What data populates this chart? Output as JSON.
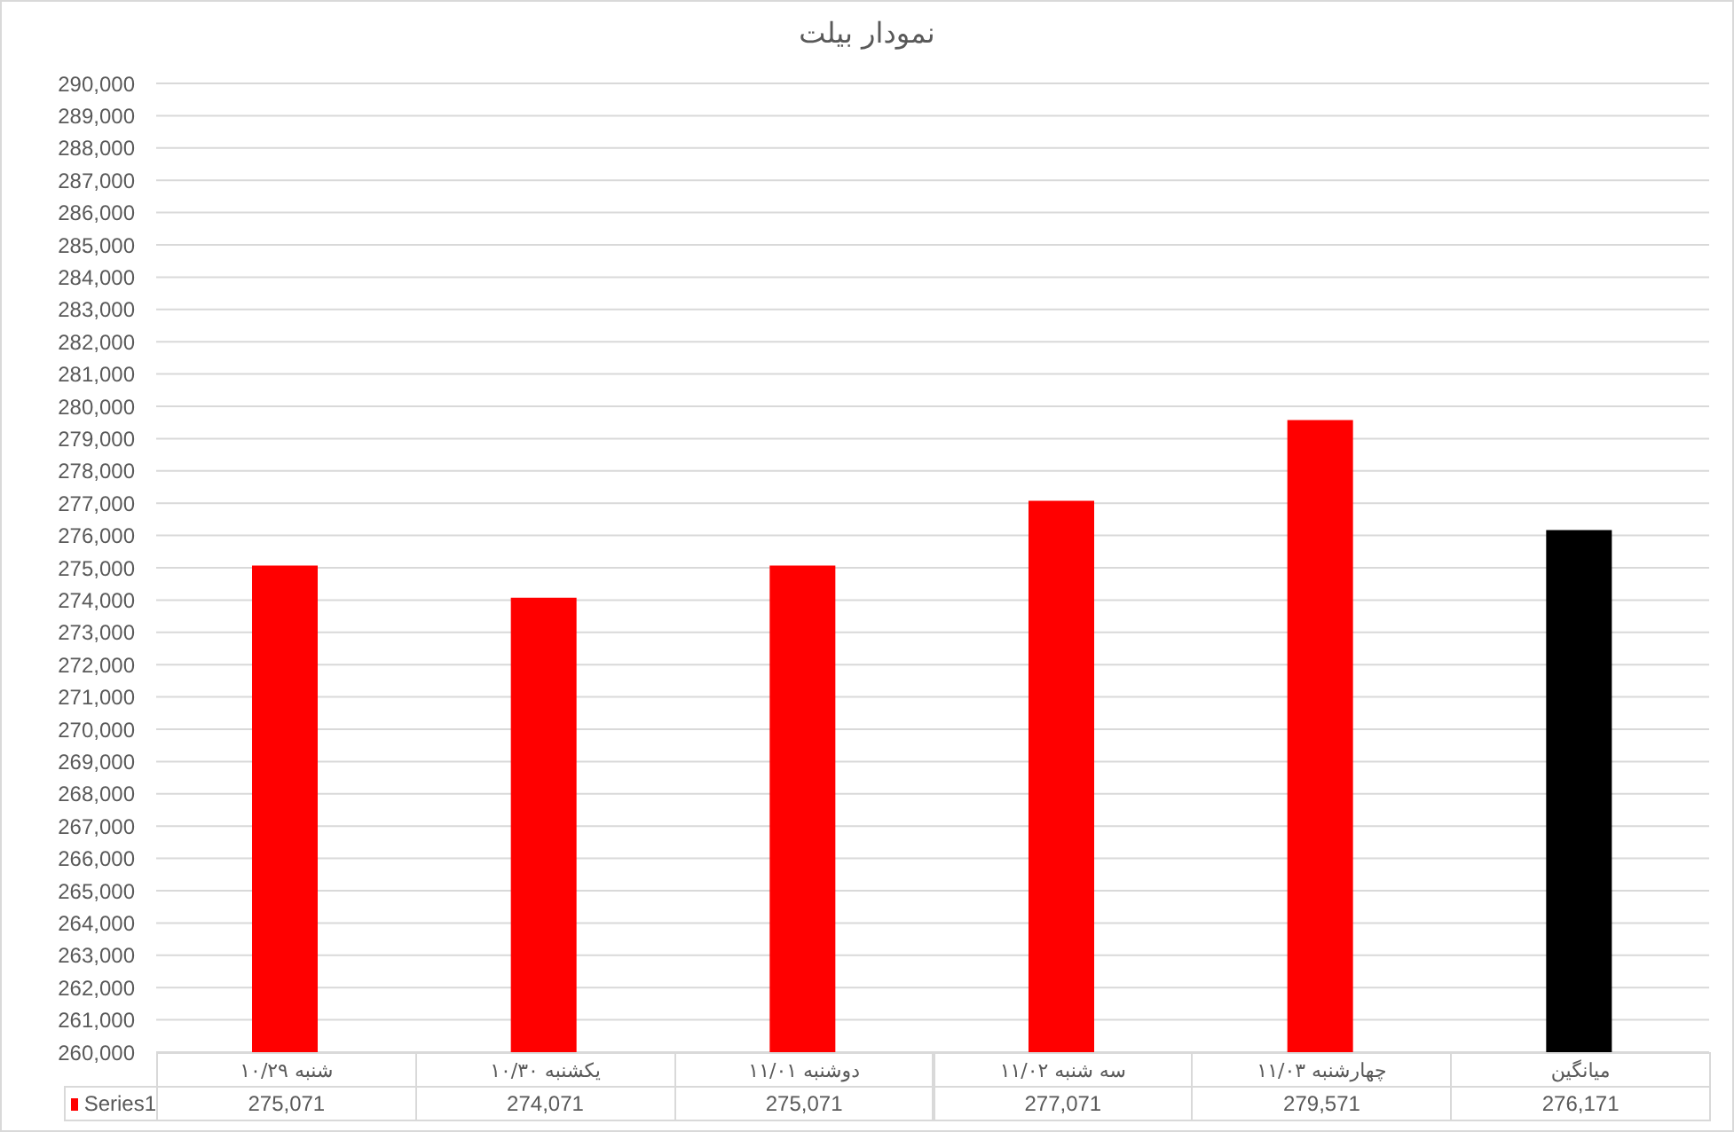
{
  "chart_data": {
    "type": "bar",
    "title": "نمودار بیلت",
    "categories": [
      "شنبه ۱۰/۲۹",
      "یکشنبه ۱۰/۳۰",
      "دوشنبه ۱۱/۰۱",
      "سه شنبه ۱۱/۰۲",
      "چهارشنبه ۱۱/۰۳",
      "میانگین"
    ],
    "series": [
      {
        "name": "Series1",
        "color": "#ff0000",
        "colors": [
          "#ff0000",
          "#ff0000",
          "#ff0000",
          "#ff0000",
          "#ff0000",
          "#000000"
        ],
        "values": [
          275071,
          274071,
          275071,
          277071,
          279571,
          276171
        ],
        "value_labels": [
          "275,071",
          "274,071",
          "275,071",
          "277,071",
          "279,571",
          "276,171"
        ]
      }
    ],
    "ylim": [
      260000,
      290000
    ],
    "yticks": [
      {
        "value": 260000,
        "label": "260,000"
      },
      {
        "value": 261000,
        "label": "261,000"
      },
      {
        "value": 262000,
        "label": "262,000"
      },
      {
        "value": 263000,
        "label": "263,000"
      },
      {
        "value": 264000,
        "label": "264,000"
      },
      {
        "value": 265000,
        "label": "265,000"
      },
      {
        "value": 266000,
        "label": "266,000"
      },
      {
        "value": 267000,
        "label": "267,000"
      },
      {
        "value": 268000,
        "label": "268,000"
      },
      {
        "value": 269000,
        "label": "269,000"
      },
      {
        "value": 270000,
        "label": "270,000"
      },
      {
        "value": 271000,
        "label": "271,000"
      },
      {
        "value": 272000,
        "label": "272,000"
      },
      {
        "value": 273000,
        "label": "273,000"
      },
      {
        "value": 274000,
        "label": "274,000"
      },
      {
        "value": 275000,
        "label": "275,000"
      },
      {
        "value": 276000,
        "label": "276,000"
      },
      {
        "value": 277000,
        "label": "277,000"
      },
      {
        "value": 278000,
        "label": "278,000"
      },
      {
        "value": 279000,
        "label": "279,000"
      },
      {
        "value": 280000,
        "label": "280,000"
      },
      {
        "value": 281000,
        "label": "281,000"
      },
      {
        "value": 282000,
        "label": "282,000"
      },
      {
        "value": 283000,
        "label": "283,000"
      },
      {
        "value": 284000,
        "label": "284,000"
      },
      {
        "value": 285000,
        "label": "285,000"
      },
      {
        "value": 286000,
        "label": "286,000"
      },
      {
        "value": 287000,
        "label": "287,000"
      },
      {
        "value": 288000,
        "label": "288,000"
      },
      {
        "value": 289000,
        "label": "289,000"
      },
      {
        "value": 290000,
        "label": "290,000"
      }
    ],
    "grid": "y",
    "legend": "bottom"
  }
}
